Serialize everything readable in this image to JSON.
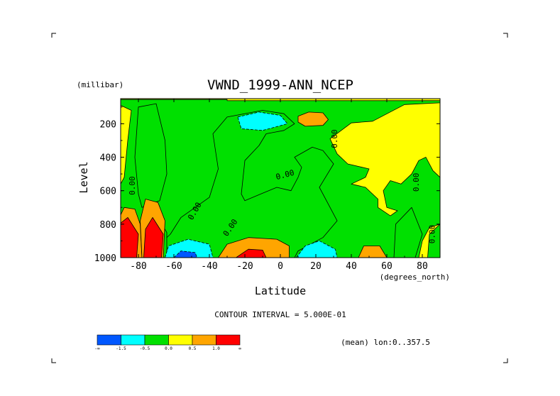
{
  "chart_data": {
    "type": "heatmap",
    "title": "VWND_1999-ANN_NCEP",
    "xlabel": "Latitude",
    "ylabel": "Level",
    "x_units": "(degrees_north)",
    "y_units": "(millibar)",
    "xlim": [
      -90,
      90
    ],
    "ylim": [
      1000,
      50
    ],
    "y_inverted": true,
    "x_ticks": [
      "-80",
      "-60",
      "-40",
      "-20",
      "0",
      "20",
      "40",
      "60",
      "80"
    ],
    "x_tick_values": [
      -80,
      -60,
      -40,
      -20,
      0,
      20,
      40,
      60,
      80
    ],
    "y_ticks": [
      "200",
      "400",
      "600",
      "800",
      "1000"
    ],
    "y_tick_values": [
      200,
      400,
      600,
      800,
      1000
    ],
    "contour_interval_text": "CONTOUR INTERVAL = 5.000E-01",
    "mean_text": "(mean) lon:0..357.5",
    "contour_labels": [
      {
        "text": "0.00",
        "lat": -82,
        "lev": 570,
        "rotate": -90
      },
      {
        "text": "0.00",
        "lat": -47,
        "lev": 730,
        "rotate": -60
      },
      {
        "text": "0.00",
        "lat": -27,
        "lev": 830,
        "rotate": -55
      },
      {
        "text": "0.00",
        "lat": 3,
        "lev": 520,
        "rotate": -15
      },
      {
        "text": "0.00",
        "lat": 32,
        "lev": 290,
        "rotate": -90
      },
      {
        "text": "0.00",
        "lat": 78,
        "lev": 550,
        "rotate": -90
      },
      {
        "text": "0.00",
        "lat": 87,
        "lev": 860,
        "rotate": -90
      }
    ],
    "legend": {
      "colors": [
        "#0057ff",
        "#00ffff",
        "#00e000",
        "#ffff00",
        "#ffa500",
        "#ff0000"
      ],
      "labels": [
        "-∞",
        "-1.5",
        "-0.5",
        "0.0",
        "0.5",
        "1.0",
        "∞"
      ]
    },
    "regions": [
      {
        "band": "0.0 to 0.5",
        "color": "#ffff00",
        "points": [
          [
            -90,
            50
          ],
          [
            90,
            50
          ],
          [
            90,
            1000
          ],
          [
            -90,
            1000
          ]
        ]
      },
      {
        "band": "-0.5 to 0.0",
        "color": "#00e000",
        "points": [
          [
            -90,
            55
          ],
          [
            -30,
            55
          ],
          [
            -30,
            62
          ],
          [
            90,
            62
          ],
          [
            90,
            75
          ],
          [
            70,
            85
          ],
          [
            52,
            185
          ],
          [
            40,
            195
          ],
          [
            28,
            290
          ],
          [
            32,
            380
          ],
          [
            38,
            440
          ],
          [
            50,
            470
          ],
          [
            48,
            520
          ],
          [
            40,
            560
          ],
          [
            48,
            580
          ],
          [
            55,
            650
          ],
          [
            55,
            700
          ],
          [
            62,
            750
          ],
          [
            66,
            720
          ],
          [
            60,
            700
          ],
          [
            58,
            600
          ],
          [
            62,
            540
          ],
          [
            68,
            560
          ],
          [
            74,
            500
          ],
          [
            78,
            420
          ],
          [
            82,
            400
          ],
          [
            86,
            480
          ],
          [
            90,
            520
          ],
          [
            90,
            800
          ],
          [
            84,
            820
          ],
          [
            80,
            900
          ],
          [
            78,
            1000
          ],
          [
            -66,
            1000
          ],
          [
            -66,
            900
          ],
          [
            -62,
            860
          ],
          [
            -56,
            760
          ],
          [
            -40,
            640
          ],
          [
            -35,
            470
          ],
          [
            -38,
            260
          ],
          [
            -30,
            160
          ],
          [
            -10,
            120
          ],
          [
            2,
            140
          ],
          [
            8,
            200
          ],
          [
            2,
            240
          ],
          [
            -8,
            260
          ],
          [
            -12,
            330
          ],
          [
            -20,
            420
          ],
          [
            -22,
            620
          ],
          [
            -20,
            660
          ],
          [
            -10,
            615
          ],
          [
            -2,
            580
          ],
          [
            6,
            600
          ],
          [
            10,
            520
          ],
          [
            12,
            460
          ],
          [
            8,
            400
          ],
          [
            18,
            340
          ],
          [
            24,
            360
          ],
          [
            30,
            440
          ],
          [
            22,
            580
          ],
          [
            32,
            780
          ],
          [
            24,
            880
          ],
          [
            10,
            960
          ],
          [
            8,
            1000
          ],
          [
            -66,
            1000
          ],
          [
            -66,
            1000
          ],
          [
            -92,
            1000
          ],
          [
            -92,
            600
          ],
          [
            -88,
            520
          ],
          [
            -86,
            300
          ],
          [
            -84,
            120
          ],
          [
            -90,
            90
          ]
        ]
      },
      {
        "band": "-0.5 to 0.0",
        "color": "#00e000",
        "points": [
          [
            -80,
            100
          ],
          [
            -70,
            80
          ],
          [
            -65,
            300
          ],
          [
            -64,
            500
          ],
          [
            -68,
            660
          ],
          [
            -78,
            700
          ],
          [
            -80,
            620
          ],
          [
            -82,
            400
          ]
        ]
      },
      {
        "band": "-0.5 to 0.0",
        "color": "#00e000",
        "points": [
          [
            -75,
            870
          ],
          [
            -70,
            740
          ],
          [
            -64,
            850
          ],
          [
            -64,
            1000
          ],
          [
            -78,
            1000
          ]
        ]
      },
      {
        "band": "-0.5 to 0.0",
        "color": "#00e000",
        "points": [
          [
            65,
            800
          ],
          [
            74,
            700
          ],
          [
            80,
            860
          ],
          [
            76,
            1000
          ],
          [
            64,
            1000
          ]
        ]
      },
      {
        "band": "-0.5 to 0.0",
        "color": "#00e000",
        "points": [
          [
            84,
            860
          ],
          [
            90,
            800
          ],
          [
            90,
            1000
          ],
          [
            83,
            1000
          ]
        ]
      },
      {
        "band": "-1.5 to -0.5",
        "color": "#00ffff",
        "points": [
          [
            -24,
            160
          ],
          [
            -12,
            130
          ],
          [
            0,
            150
          ],
          [
            4,
            200
          ],
          [
            -10,
            240
          ],
          [
            -22,
            230
          ]
        ]
      },
      {
        "band": "-1.5 to -0.5",
        "color": "#00ffff",
        "points": [
          [
            -65,
            1000
          ],
          [
            -63,
            930
          ],
          [
            -52,
            890
          ],
          [
            -40,
            920
          ],
          [
            -38,
            1000
          ]
        ]
      },
      {
        "band": "-1.5 to -0.5",
        "color": "#00ffff",
        "points": [
          [
            9,
            1000
          ],
          [
            14,
            930
          ],
          [
            22,
            900
          ],
          [
            31,
            950
          ],
          [
            32,
            1000
          ]
        ]
      },
      {
        "band": "< -1.5",
        "color": "#0057ff",
        "points": [
          [
            -60,
            1000
          ],
          [
            -56,
            960
          ],
          [
            -48,
            970
          ],
          [
            -47,
            1000
          ]
        ]
      },
      {
        "band": "0.5 to 1.0",
        "color": "#ffa500",
        "points": [
          [
            10,
            155
          ],
          [
            16,
            130
          ],
          [
            24,
            135
          ],
          [
            27,
            175
          ],
          [
            24,
            210
          ],
          [
            14,
            215
          ],
          [
            10,
            190
          ]
        ]
      },
      {
        "band": "0.5 to 1.0",
        "color": "#ffa500",
        "points": [
          [
            -35,
            1000
          ],
          [
            -30,
            920
          ],
          [
            -18,
            880
          ],
          [
            -2,
            890
          ],
          [
            5,
            930
          ],
          [
            5,
            1000
          ]
        ]
      },
      {
        "band": "0.5 to 1.0",
        "color": "#ffa500",
        "points": [
          [
            44,
            1000
          ],
          [
            47,
            930
          ],
          [
            56,
            930
          ],
          [
            60,
            1000
          ]
        ]
      },
      {
        "band": "0.5 to 1.0",
        "color": "#ffa500",
        "points": [
          [
            -92,
            1000
          ],
          [
            -92,
            790
          ],
          [
            -88,
            700
          ],
          [
            -82,
            710
          ],
          [
            -79,
            800
          ],
          [
            -78,
            1000
          ]
        ]
      },
      {
        "band": "0.5 to 1.0",
        "color": "#ffa500",
        "points": [
          [
            -78,
            1000
          ],
          [
            -79,
            780
          ],
          [
            -76,
            650
          ],
          [
            -69,
            670
          ],
          [
            -65,
            780
          ],
          [
            -66,
            1000
          ]
        ]
      },
      {
        "band": "> 1.0",
        "color": "#ff0000",
        "points": [
          [
            -92,
            1000
          ],
          [
            -92,
            810
          ],
          [
            -86,
            760
          ],
          [
            -80,
            860
          ],
          [
            -81,
            1000
          ]
        ]
      },
      {
        "band": "> 1.0",
        "color": "#ff0000",
        "points": [
          [
            -77,
            1000
          ],
          [
            -76,
            830
          ],
          [
            -72,
            760
          ],
          [
            -66,
            860
          ],
          [
            -67,
            1000
          ]
        ]
      },
      {
        "band": "> 1.0",
        "color": "#ff0000",
        "points": [
          [
            -25,
            1000
          ],
          [
            -18,
            950
          ],
          [
            -10,
            955
          ],
          [
            -8,
            1000
          ]
        ]
      }
    ]
  }
}
